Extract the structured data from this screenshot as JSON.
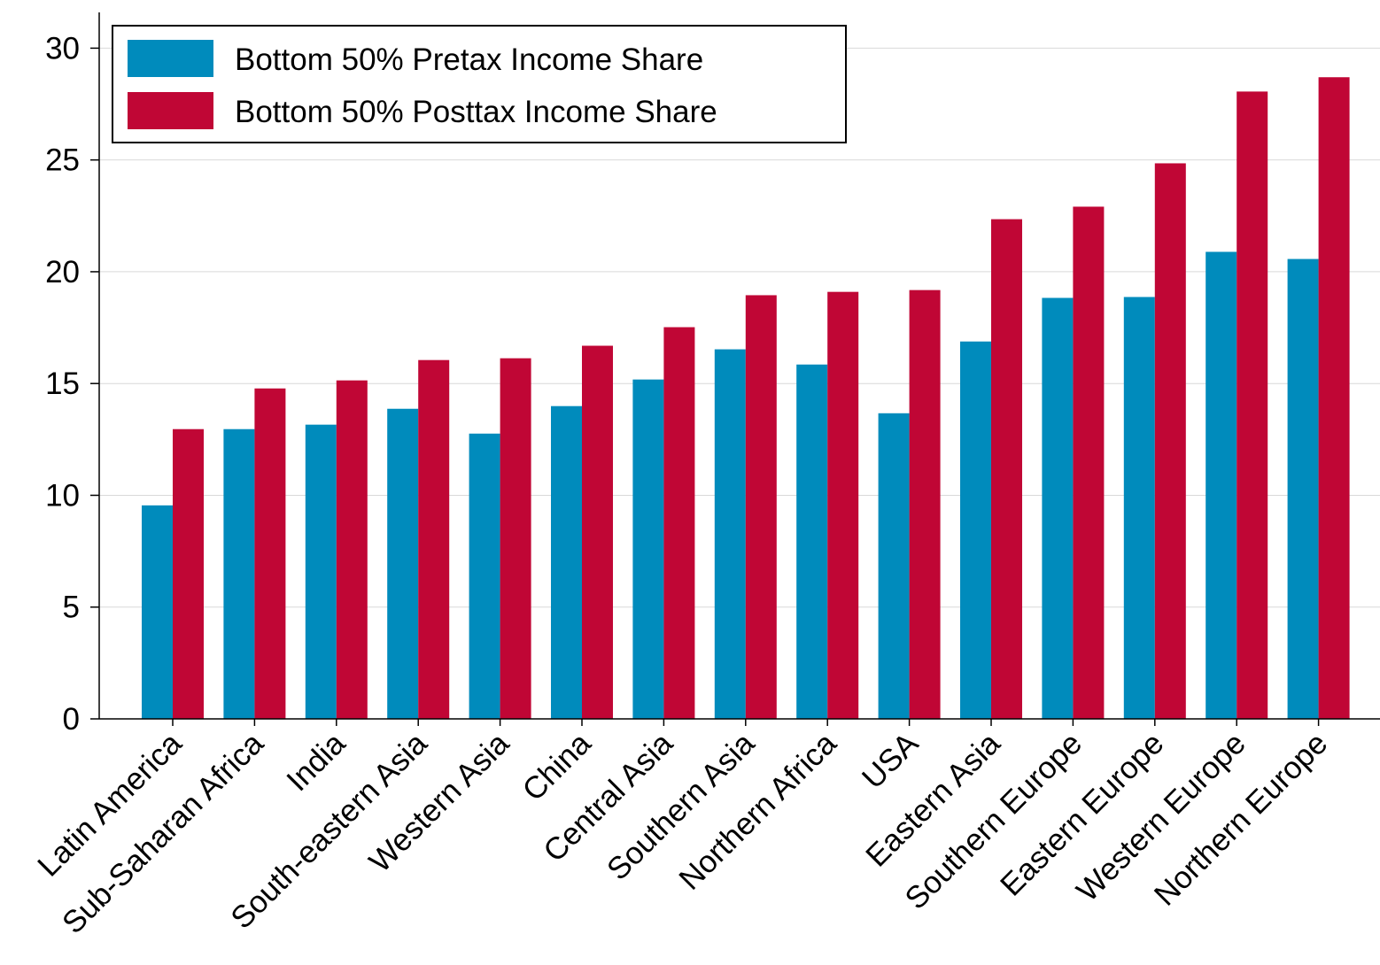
{
  "chart_data": {
    "type": "bar",
    "categories": [
      "Latin America",
      "Sub-Saharan Africa",
      "India",
      "South-eastern Asia",
      "Western Asia",
      "China",
      "Central Asia",
      "Southern Asia",
      "Northern Africa",
      "USA",
      "Eastern Asia",
      "Southern Europe",
      "Eastern Europe",
      "Western Europe",
      "Northern Europe"
    ],
    "series": [
      {
        "name": "Bottom 50% Pretax Income Share",
        "color": "#008bbc",
        "values": [
          9.55,
          12.96,
          13.16,
          13.87,
          12.76,
          13.99,
          15.18,
          16.53,
          15.85,
          13.67,
          16.88,
          18.83,
          18.87,
          20.89,
          20.57
        ]
      },
      {
        "name": "Bottom 50% Posttax Income Share",
        "color": "#c00635",
        "values": [
          12.96,
          14.78,
          15.14,
          16.05,
          16.13,
          16.69,
          17.52,
          18.95,
          19.1,
          19.18,
          22.35,
          22.91,
          24.85,
          28.06,
          28.7
        ]
      }
    ],
    "ylim": [
      0,
      31.6
    ],
    "yticks": [
      0,
      5,
      10,
      15,
      20,
      25,
      30
    ],
    "grid": true,
    "legend": "upper left"
  }
}
